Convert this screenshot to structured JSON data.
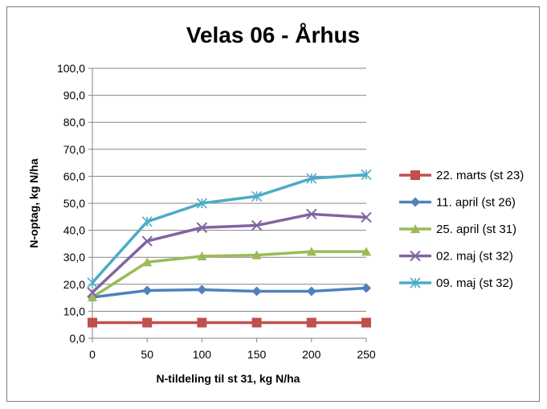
{
  "chart_data": {
    "type": "line",
    "title": "Velas 06 - Århus",
    "xlabel": "N-tildeling til st 31, kg N/ha",
    "ylabel": "N-optag, kg N/ha",
    "x": [
      0,
      50,
      100,
      150,
      200,
      250
    ],
    "x_tick_labels": [
      "0",
      "50",
      "100",
      "150",
      "200",
      "250"
    ],
    "xlim": [
      0,
      250
    ],
    "ylim": [
      0,
      100
    ],
    "y_tick_labels": [
      "0,0",
      "10,0",
      "20,0",
      "30,0",
      "40,0",
      "50,0",
      "60,0",
      "70,0",
      "80,0",
      "90,0",
      "100,0"
    ],
    "grid": "horizontal",
    "legend_position": "right",
    "series": [
      {
        "name": "22. marts (st 23)",
        "color": "#C0504D",
        "marker": "square",
        "values": [
          5.8,
          5.8,
          5.8,
          5.8,
          5.8,
          5.8
        ]
      },
      {
        "name": "11. april (st 26)",
        "color": "#4F81BD",
        "marker": "diamond",
        "values": [
          15.2,
          17.7,
          18.0,
          17.4,
          17.4,
          18.6
        ]
      },
      {
        "name": "25. april (st 31)",
        "color": "#9BBB59",
        "marker": "triangle",
        "values": [
          15.2,
          28.2,
          30.4,
          30.8,
          32.1,
          32.1
        ]
      },
      {
        "name": "02. maj (st 32)",
        "color": "#8064A2",
        "marker": "x",
        "values": [
          17.0,
          36.0,
          41.0,
          41.8,
          46.0,
          44.8
        ]
      },
      {
        "name": "09. maj (st 32)",
        "color": "#4BACC6",
        "marker": "star",
        "values": [
          20.6,
          43.2,
          50.0,
          52.6,
          59.2,
          60.6
        ]
      }
    ]
  }
}
